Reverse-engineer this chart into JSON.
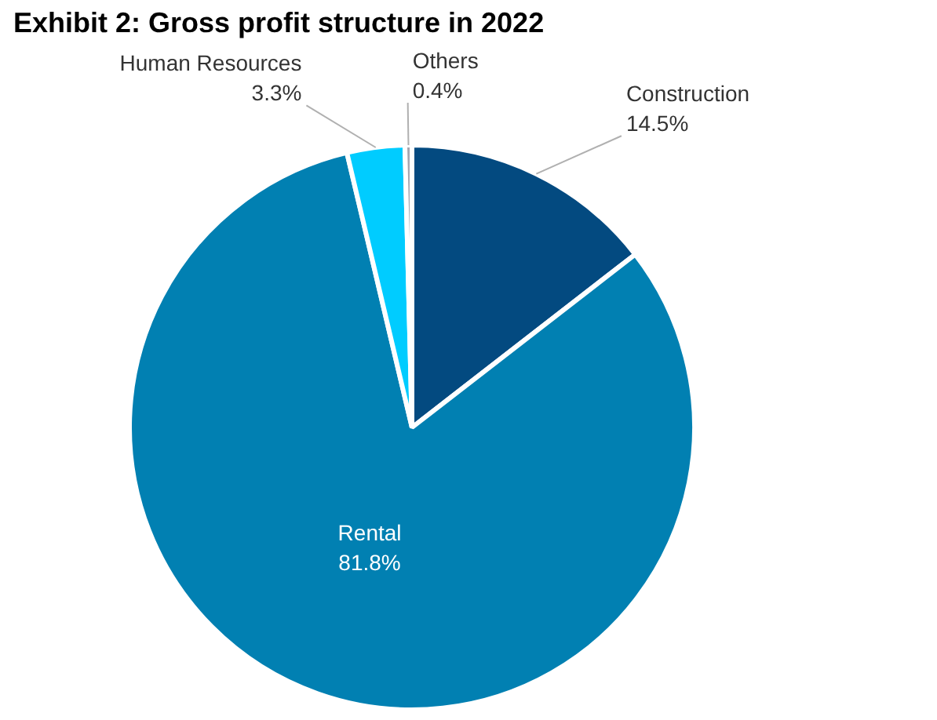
{
  "chart_data": {
    "type": "pie",
    "title": "Exhibit 2: Gross profit structure in 2022",
    "categories": [
      "Construction",
      "Rental",
      "Human Resources",
      "Others"
    ],
    "values": [
      14.5,
      81.8,
      3.3,
      0.4
    ],
    "colors": [
      "#034a80",
      "#0180b2",
      "#00ccff",
      "#a6a6b0"
    ],
    "value_labels": [
      "14.5%",
      "81.8%",
      "3.3%",
      "0.4%"
    ]
  }
}
